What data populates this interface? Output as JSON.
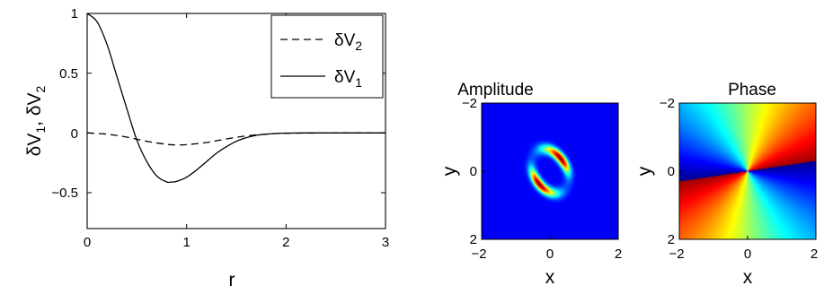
{
  "chart_data": [
    {
      "type": "line",
      "xlabel": "r",
      "ylabel": "δV",
      "ylabel_parts": {
        "s1": "1",
        "sep": ", ",
        "s2": "2"
      },
      "xlim": [
        0,
        3
      ],
      "ylim": [
        -0.8,
        1
      ],
      "xticks": [
        0,
        1,
        2,
        3
      ],
      "yticks": [
        1,
        0.5,
        0,
        -0.5
      ],
      "xtick_labels": [
        "0",
        "1",
        "2",
        "3"
      ],
      "ytick_labels": [
        "1",
        "0.5",
        "0",
        "−0.5"
      ],
      "grid": false,
      "legend_position": "top-right",
      "legend": [
        {
          "base": "δV",
          "sub": "2",
          "style": "dashed"
        },
        {
          "base": "δV",
          "sub": "1",
          "style": "solid"
        }
      ],
      "series": [
        {
          "style": "solid",
          "x": [
            0,
            0.1,
            0.2,
            0.3,
            0.4,
            0.5,
            0.6,
            0.7,
            0.8,
            0.85,
            0.9,
            1.0,
            1.1,
            1.2,
            1.3,
            1.4,
            1.5,
            1.6,
            1.7,
            1.8,
            1.9,
            2.0,
            2.2,
            2.5,
            3.0
          ],
          "y": [
            1.0,
            0.93,
            0.74,
            0.47,
            0.2,
            -0.06,
            -0.24,
            -0.36,
            -0.41,
            -0.41,
            -0.405,
            -0.37,
            -0.31,
            -0.24,
            -0.17,
            -0.115,
            -0.07,
            -0.04,
            -0.02,
            -0.01,
            -0.004,
            -0.001,
            0,
            0,
            0
          ]
        },
        {
          "style": "dashed",
          "x": [
            0,
            0.2,
            0.4,
            0.6,
            0.8,
            0.9,
            1.0,
            1.2,
            1.4,
            1.6,
            1.8,
            2.0,
            2.5,
            3.0
          ],
          "y": [
            0,
            -0.01,
            -0.035,
            -0.07,
            -0.095,
            -0.1,
            -0.098,
            -0.08,
            -0.05,
            -0.025,
            -0.01,
            -0.003,
            0,
            0
          ]
        }
      ]
    },
    {
      "type": "heatmap",
      "title": "Amplitude",
      "xlabel": "x",
      "ylabel": "y",
      "xlim": [
        -2,
        2
      ],
      "ylim": [
        -2,
        2
      ],
      "xtick_labels": [
        "−2",
        "0",
        "2"
      ],
      "ytick_labels": [
        "−2",
        "0",
        "2"
      ],
      "colormap": "jet",
      "description_values": {
        "background": 0,
        "ring_major_radius": 0.55,
        "ring_minor_radius": 0.38,
        "ring_tilt_deg": 60,
        "lobe_peak_angle_deg": 250
      }
    },
    {
      "type": "heatmap",
      "title": "Phase",
      "xlabel": "x",
      "ylabel": "y",
      "xlim": [
        -2,
        2
      ],
      "ylim": [
        -2,
        2
      ],
      "xtick_labels": [
        "−2",
        "0",
        "2"
      ],
      "ytick_labels": [
        "−2",
        "0",
        "2"
      ],
      "colormap": "hsv-jet",
      "winding_number": 2
    }
  ],
  "colors": {
    "axes": "#000000",
    "line": "#000000",
    "heatmap_background": "#2b3aa0"
  }
}
